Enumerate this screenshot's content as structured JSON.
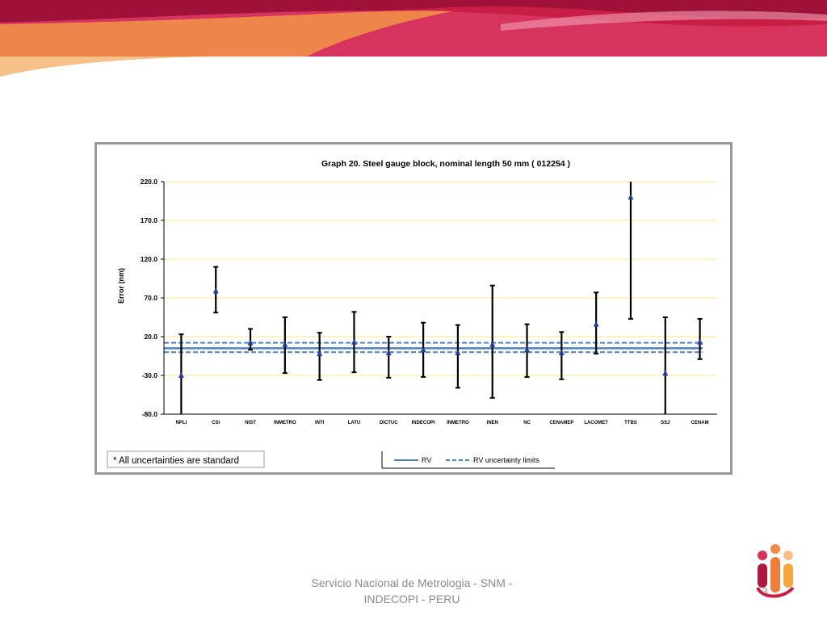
{
  "footer": {
    "line1": "Servicio Nacional de Metrologia - SNM -",
    "line2": "INDECOPI - PERU",
    "page_number": "3"
  },
  "colors": {
    "banner_red": "#b0173c",
    "banner_orange": "#f08a4b",
    "banner_pink": "#d9336a",
    "rv_line": "#4f81bd",
    "marker": "#1f3d99",
    "gridline": "#f5e88a"
  },
  "chart_data": {
    "type": "errorbar",
    "title": "Graph 20. Steel gauge block, nominal length 50 mm ( 012254 )",
    "xlabel": "",
    "ylabel": "Error (nm)",
    "ylim": [
      -80.0,
      220.0
    ],
    "yticks": [
      "220.0",
      "170.0",
      "120.0",
      "70.0",
      "20.0",
      "-30.0",
      "-80.0"
    ],
    "ytick_values": [
      220,
      170,
      120,
      70,
      20,
      -30,
      -80
    ],
    "grid": "horizontal",
    "categories": [
      "NPLI",
      "CSI",
      "NIST",
      "INMETRO",
      "INTI",
      "LATU",
      "DICTUC",
      "INDECOPI",
      "INMETRO",
      "INEN",
      "NC",
      "CENAMEP",
      "LACOMET",
      "TTBS",
      "SSJ",
      "CENAM"
    ],
    "series": [
      {
        "values": [
          -30,
          79,
          12,
          10,
          -2,
          13,
          -1,
          3,
          -1,
          10,
          3,
          -1,
          36,
          200,
          -27,
          13
        ],
        "lower": [
          -80,
          51,
          3,
          -27,
          -36,
          -26,
          -33,
          -32,
          -46,
          -59,
          -32,
          -35,
          -2,
          43,
          -80,
          -9
        ],
        "upper": [
          23,
          110,
          30,
          45,
          25,
          52,
          20,
          38,
          35,
          86,
          36,
          26,
          77,
          220,
          45,
          43
        ]
      }
    ],
    "reference": {
      "rv": 5,
      "rv_upper_limit": 12,
      "rv_lower_limit": 0
    },
    "legend": [
      {
        "label": "RV"
      },
      {
        "label": "RV uncertainty limits"
      }
    ],
    "legend_position": "bottom-right",
    "note": "* All uncertainties are standard"
  }
}
